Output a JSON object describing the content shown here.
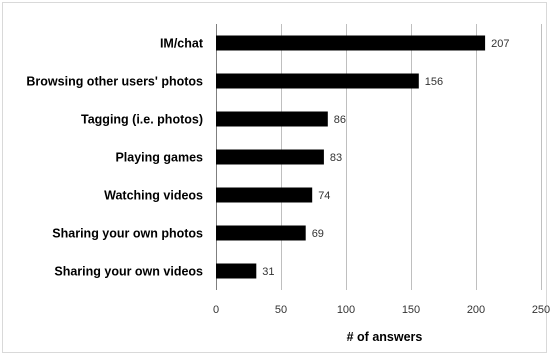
{
  "chart_data": {
    "type": "bar",
    "orientation": "horizontal",
    "categories": [
      "IM/chat",
      "Browsing other users' photos",
      "Tagging (i.e. photos)",
      "Playing games",
      "Watching videos",
      "Sharing your own photos",
      "Sharing your own videos"
    ],
    "values": [
      207,
      156,
      86,
      83,
      74,
      69,
      31
    ],
    "title": "",
    "xlabel": "# of answers",
    "ylabel": "",
    "xlim": [
      0,
      250
    ],
    "xticks": [
      0,
      50,
      100,
      150,
      200,
      250
    ],
    "grid": "vertical",
    "legend": "none",
    "bar_color": "#000000"
  }
}
